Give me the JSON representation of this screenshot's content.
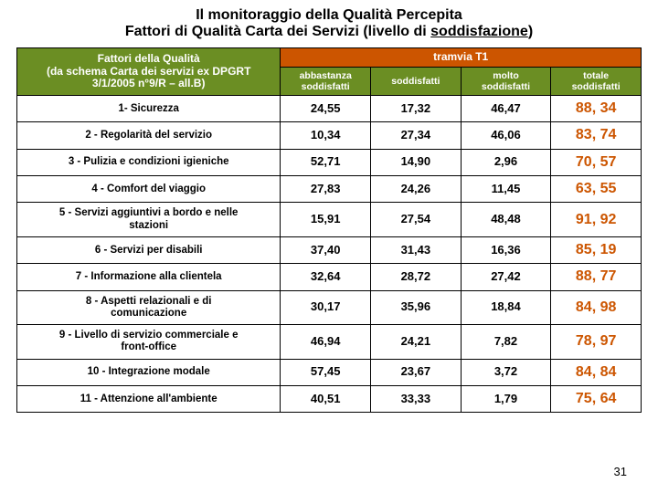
{
  "title": {
    "line1": "Il monitoraggio della Qualità Percepita",
    "line2_a": "Fattori di Qualità Carta dei Servizi (livello di ",
    "line2_b": "soddisfazione",
    "line2_c": ")"
  },
  "headers": {
    "factor": "Fattori della Qualità\n(da schema Carta dei servizi ex DPGRT\n3/1/2005 n°9/R – all.B)",
    "tram": "tramvia T1",
    "sub1": "abbastanza\nsoddisfatti",
    "sub2": "soddisfatti",
    "sub3": "molto\nsoddisfatti",
    "sub4": "totale\nsoddisfatti"
  },
  "colors": {
    "header_green": "#6b8e23",
    "header_orange": "#cc5500",
    "total_orange": "#cc5500",
    "background": "#ffffff",
    "border": "#000000",
    "text": "#000000"
  },
  "rows": [
    {
      "factor": "1- Sicurezza",
      "v1": "24,55",
      "v2": "17,32",
      "v3": "46,47",
      "total": "88, 34"
    },
    {
      "factor": "2 - Regolarità del servizio",
      "v1": "10,34",
      "v2": "27,34",
      "v3": "46,06",
      "total": "83, 74"
    },
    {
      "factor": "3 - Pulizia e condizioni igieniche",
      "v1": "52,71",
      "v2": "14,90",
      "v3": "2,96",
      "total": "70, 57"
    },
    {
      "factor": "4 - Comfort del viaggio",
      "v1": "27,83",
      "v2": "24,26",
      "v3": "11,45",
      "total": "63, 55"
    },
    {
      "factor": "5 - Servizi aggiuntivi a bordo e nelle\nstazioni",
      "v1": "15,91",
      "v2": "27,54",
      "v3": "48,48",
      "total": "91, 92"
    },
    {
      "factor": "6 - Servizi per disabili",
      "v1": "37,40",
      "v2": "31,43",
      "v3": "16,36",
      "total": "85, 19"
    },
    {
      "factor": "7 - Informazione alla clientela",
      "v1": "32,64",
      "v2": "28,72",
      "v3": "27,42",
      "total": "88, 77"
    },
    {
      "factor": "8 - Aspetti relazionali e di\ncomunicazione",
      "v1": "30,17",
      "v2": "35,96",
      "v3": "18,84",
      "total": "84, 98"
    },
    {
      "factor": "9 - Livello di servizio commerciale e\nfront-office",
      "v1": "46,94",
      "v2": "24,21",
      "v3": "7,82",
      "total": "78, 97"
    },
    {
      "factor": "10 - Integrazione modale",
      "v1": "57,45",
      "v2": "23,67",
      "v3": "3,72",
      "total": "84, 84"
    },
    {
      "factor": "11 - Attenzione all'ambiente",
      "v1": "40,51",
      "v2": "33,33",
      "v3": "1,79",
      "total": "75, 64"
    }
  ],
  "page_number": "31"
}
